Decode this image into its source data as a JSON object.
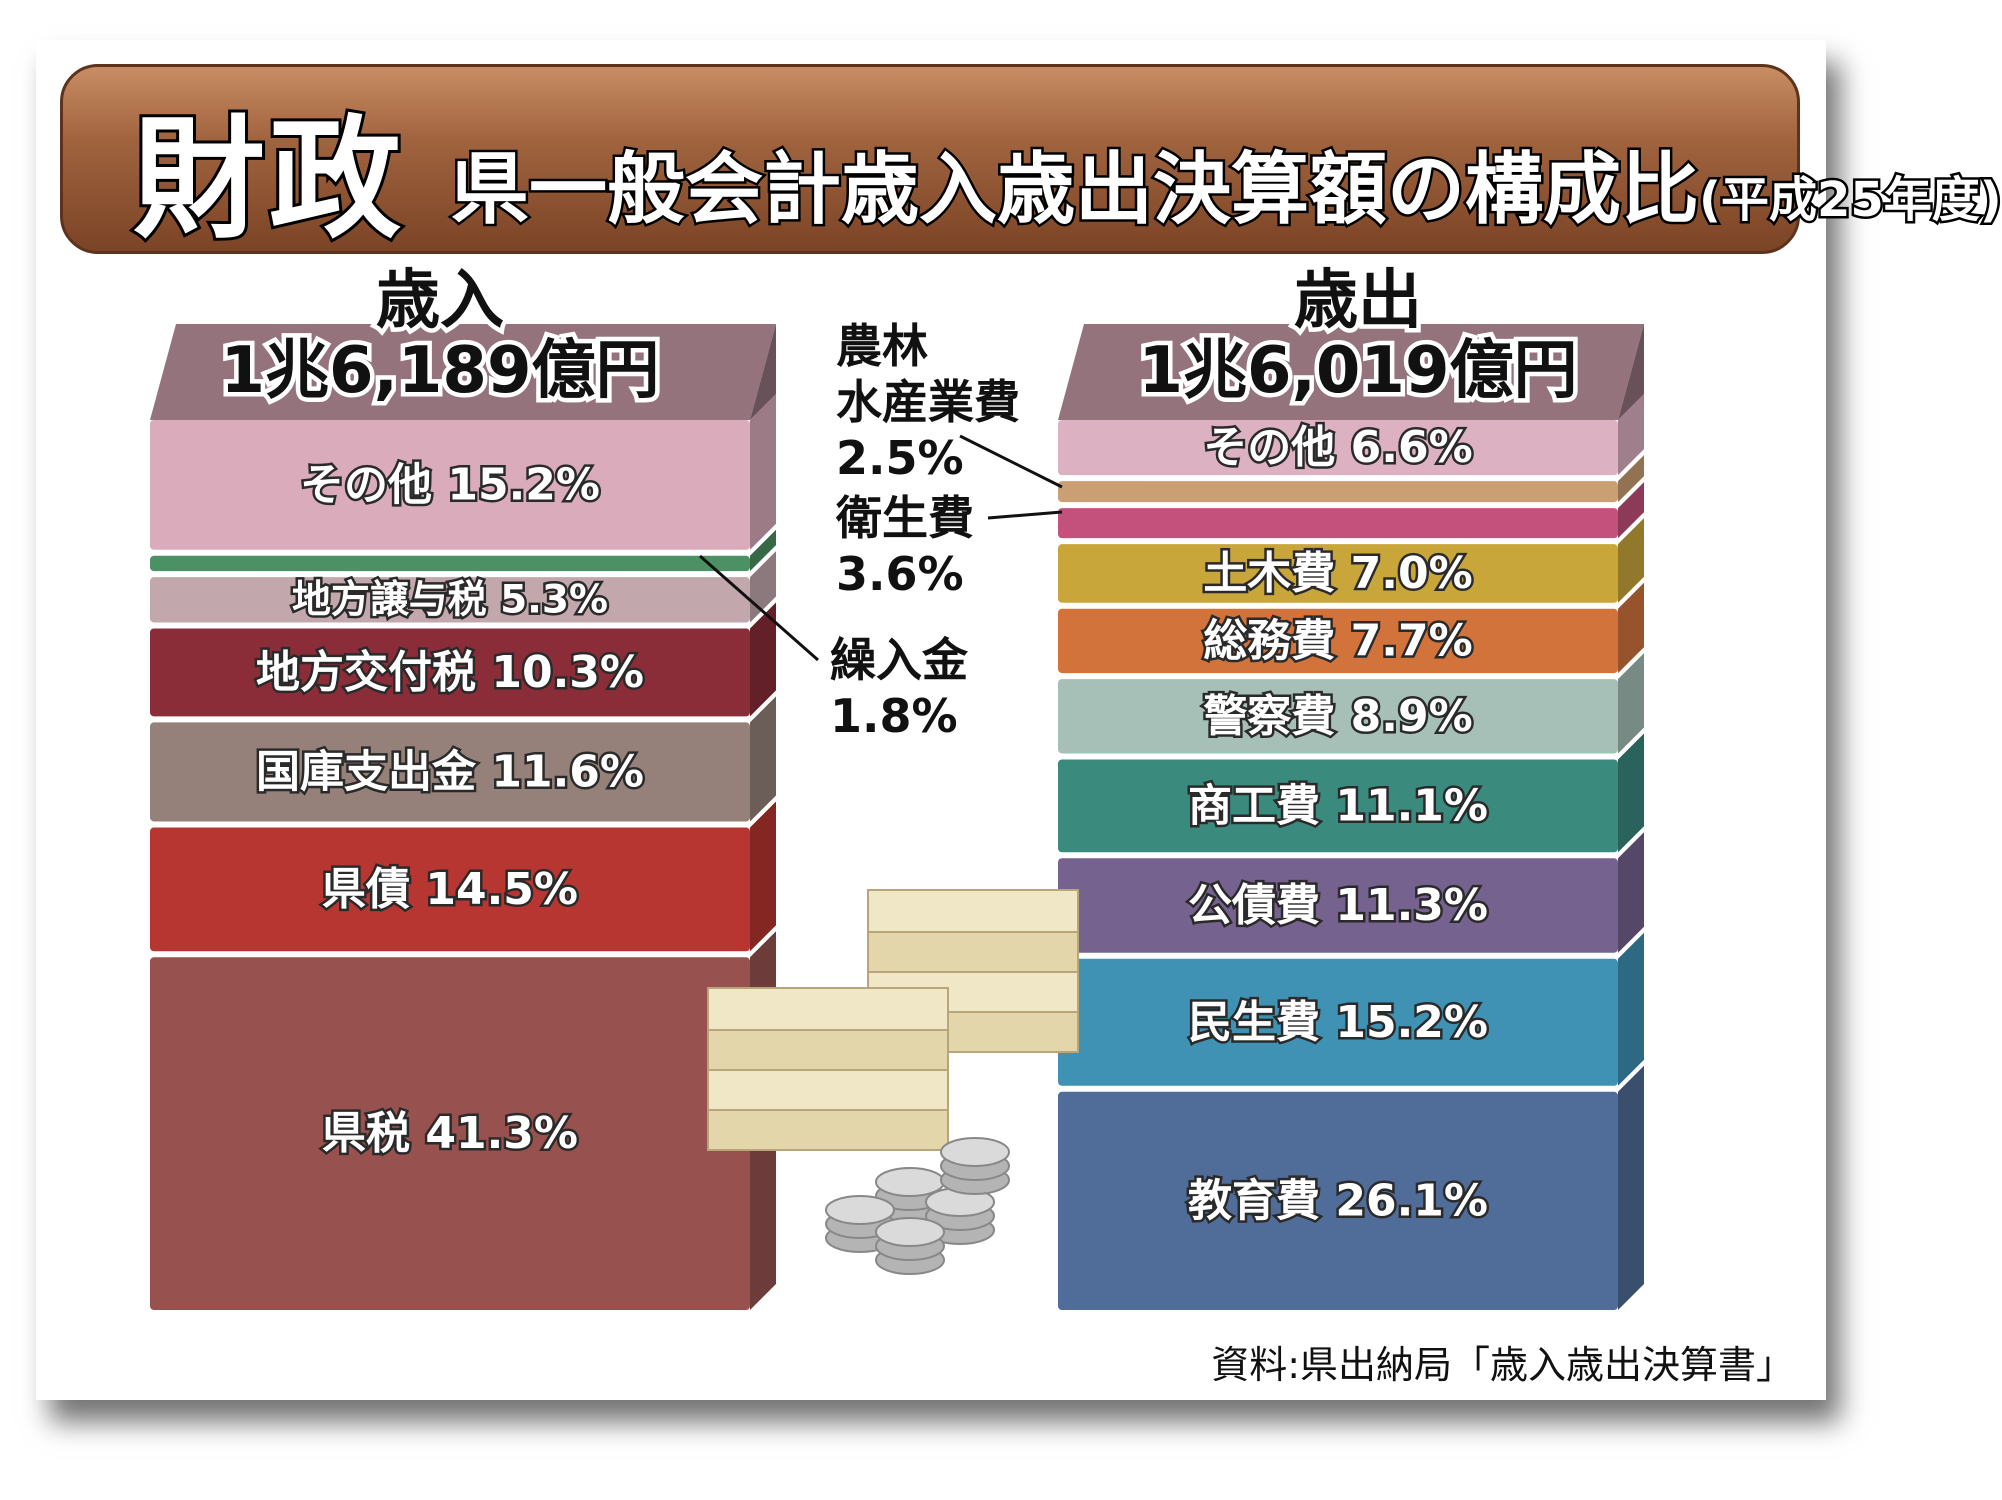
{
  "title": {
    "main": "財政",
    "sub": "県一般会計歳入歳出決算額の構成比",
    "year": "(平成25年度)"
  },
  "revenue": {
    "heading": "歳入",
    "total": "1兆6,189億円"
  },
  "expenditure": {
    "heading": "歳出",
    "total": "1兆6,019億円"
  },
  "callouts": {
    "agri_name_1": "農林",
    "agri_name_2": "水産業費",
    "agri_value": "2.5%",
    "health_name": "衛生費",
    "health_value": "3.6%",
    "transfer_name": "繰入金",
    "transfer_value": "1.8%"
  },
  "source": "資料:県出納局「歳入歳出決算書」",
  "chart_data": [
    {
      "type": "stacked_bar",
      "name": "歳入",
      "total_label": "1兆6,189億円",
      "unit": "%",
      "segments": [
        {
          "label": "県税",
          "value": 41.3,
          "color": "#97524f"
        },
        {
          "label": "県債",
          "value": 14.5,
          "color": "#b83631"
        },
        {
          "label": "国庫支出金",
          "value": 11.6,
          "color": "#958179"
        },
        {
          "label": "地方交付税",
          "value": 10.3,
          "color": "#8b2d38"
        },
        {
          "label": "地方譲与税",
          "value": 5.3,
          "color": "#c2a8ad"
        },
        {
          "label": "繰入金",
          "value": 1.8,
          "color": "#4c9163"
        },
        {
          "label": "その他",
          "value": 15.2,
          "color": "#d9abbb"
        }
      ]
    },
    {
      "type": "stacked_bar",
      "name": "歳出",
      "total_label": "1兆6,019億円",
      "unit": "%",
      "segments": [
        {
          "label": "教育費",
          "value": 26.1,
          "color": "#506c99"
        },
        {
          "label": "民生費",
          "value": 15.2,
          "color": "#3f92b4"
        },
        {
          "label": "公債費",
          "value": 11.3,
          "color": "#76628f"
        },
        {
          "label": "商工費",
          "value": 11.1,
          "color": "#3a8a7e"
        },
        {
          "label": "警察費",
          "value": 8.9,
          "color": "#a6c0b7"
        },
        {
          "label": "総務費",
          "value": 7.7,
          "color": "#d2733c"
        },
        {
          "label": "土木費",
          "value": 7.0,
          "color": "#c9a63a"
        },
        {
          "label": "衛生費",
          "value": 3.6,
          "color": "#c4517c"
        },
        {
          "label": "農林水産業費",
          "value": 2.5,
          "color": "#c99f73"
        },
        {
          "label": "その他",
          "value": 6.6,
          "color": "#dcb1c1"
        }
      ]
    }
  ]
}
